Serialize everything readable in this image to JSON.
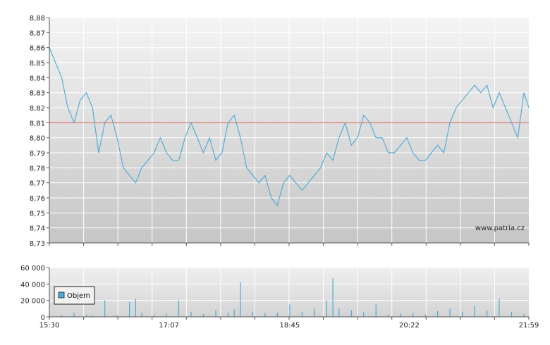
{
  "watermark": "www.patria.cz",
  "colors": {
    "line": "#4aaad8",
    "reference": "#e0554a",
    "volume": "#4aaad8",
    "axis": "#555555"
  },
  "chart_data": [
    {
      "type": "line",
      "ylim": [
        8.73,
        8.88
      ],
      "y_ticks": [
        "8,88",
        "8,87",
        "8,86",
        "8,85",
        "8,84",
        "8,83",
        "8,82",
        "8,81",
        "8,80",
        "8,79",
        "8,78",
        "8,77",
        "8,76",
        "8,75",
        "8,74",
        "8,73"
      ],
      "x_ticks": [
        "15:30",
        "17:07",
        "18:45",
        "20:22",
        "21:59"
      ],
      "reference_line": 8.81,
      "series": [
        {
          "x": [
            "15:30",
            "15:35",
            "15:40",
            "15:45",
            "15:50",
            "15:55",
            "16:00",
            "16:05",
            "16:10",
            "16:15",
            "16:20",
            "16:25",
            "16:30",
            "16:35",
            "16:40",
            "16:45",
            "16:50",
            "16:55",
            "17:00",
            "17:05",
            "17:10",
            "17:15",
            "17:20",
            "17:25",
            "17:30",
            "17:35",
            "17:40",
            "17:45",
            "17:50",
            "17:55",
            "18:00",
            "18:05",
            "18:10",
            "18:15",
            "18:20",
            "18:25",
            "18:30",
            "18:35",
            "18:40",
            "18:45",
            "18:50",
            "18:55",
            "19:00",
            "19:05",
            "19:10",
            "19:15",
            "19:20",
            "19:25",
            "19:30",
            "19:35",
            "19:40",
            "19:45",
            "19:50",
            "19:55",
            "20:00",
            "20:05",
            "20:10",
            "20:15",
            "20:20",
            "20:25",
            "20:30",
            "20:35",
            "20:40",
            "20:45",
            "20:50",
            "20:55",
            "21:00",
            "21:05",
            "21:10",
            "21:15",
            "21:20",
            "21:25",
            "21:30",
            "21:35",
            "21:40",
            "21:45",
            "21:50",
            "21:55",
            "21:59"
          ],
          "values": [
            8.86,
            8.85,
            8.84,
            8.82,
            8.81,
            8.825,
            8.83,
            8.82,
            8.79,
            8.81,
            8.815,
            8.8,
            8.78,
            8.775,
            8.77,
            8.78,
            8.785,
            8.79,
            8.8,
            8.79,
            8.785,
            8.785,
            8.8,
            8.81,
            8.8,
            8.79,
            8.8,
            8.785,
            8.79,
            8.81,
            8.815,
            8.8,
            8.78,
            8.775,
            8.77,
            8.775,
            8.76,
            8.755,
            8.77,
            8.775,
            8.77,
            8.765,
            8.77,
            8.775,
            8.78,
            8.79,
            8.785,
            8.8,
            8.81,
            8.795,
            8.8,
            8.815,
            8.81,
            8.8,
            8.8,
            8.79,
            8.79,
            8.795,
            8.8,
            8.79,
            8.785,
            8.785,
            8.79,
            8.795,
            8.79,
            8.81,
            8.82,
            8.825,
            8.83,
            8.835,
            8.83,
            8.835,
            8.82,
            8.83,
            8.82,
            8.81,
            8.8,
            8.83,
            8.82
          ]
        }
      ]
    },
    {
      "type": "bar",
      "ylim": [
        0,
        60000
      ],
      "y_ticks": [
        "60 000",
        "40 000",
        "20 000",
        "0"
      ],
      "legend": "Objem",
      "legend_position": "left",
      "x": [
        "15:30",
        "15:40",
        "15:50",
        "16:00",
        "16:05",
        "16:15",
        "16:25",
        "16:35",
        "16:40",
        "16:45",
        "16:55",
        "17:05",
        "17:15",
        "17:25",
        "17:35",
        "17:45",
        "17:55",
        "18:00",
        "18:05",
        "18:15",
        "18:25",
        "18:35",
        "18:45",
        "18:55",
        "19:05",
        "19:15",
        "19:20",
        "19:25",
        "19:35",
        "19:45",
        "19:55",
        "20:05",
        "20:15",
        "20:25",
        "20:35",
        "20:45",
        "20:55",
        "21:05",
        "21:15",
        "21:25",
        "21:35",
        "21:45",
        "21:55"
      ],
      "values": [
        3000,
        2000,
        5000,
        2500,
        1500,
        20000,
        2000,
        18000,
        22000,
        5000,
        3000,
        4000,
        20000,
        6000,
        3500,
        8000,
        5000,
        9000,
        42000,
        6000,
        4500,
        5000,
        15000,
        6000,
        10000,
        20000,
        47000,
        10000,
        8000,
        6000,
        15000,
        3000,
        4000,
        5000,
        3000,
        7000,
        10000,
        6000,
        14000,
        8000,
        22000,
        6000,
        3000
      ]
    }
  ]
}
